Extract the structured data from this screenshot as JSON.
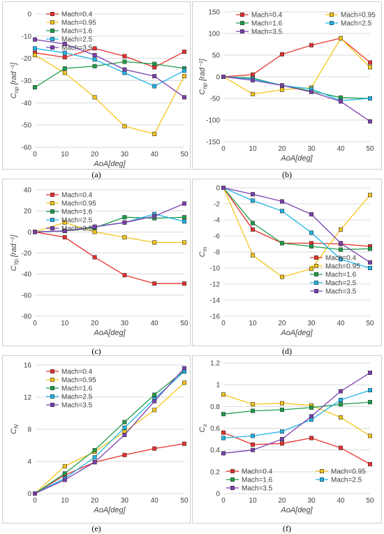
{
  "figure": {
    "captions": [
      "(a)",
      "(b)",
      "(c)",
      "(d)",
      "(e)",
      "(f)"
    ]
  },
  "chart_data": [
    {
      "type": "line",
      "caption": "(a)",
      "xlabel": "AoA[deg]",
      "ylabel": "C_np [rad⁻¹]",
      "ylabel_main": "C",
      "ylabel_sub": "np",
      "ylabel_unit": " [rad⁻¹]",
      "x": [
        0,
        10,
        20,
        30,
        40,
        50
      ],
      "xlim": [
        0,
        50
      ],
      "ylim": [
        -60,
        0
      ],
      "y_inverted": true,
      "yticks": [
        0,
        -10,
        -20,
        -30,
        -40,
        -50,
        -60
      ],
      "yticklabels": [
        "0",
        "-10",
        "-20",
        "-30",
        "-40",
        "-50",
        "-60"
      ],
      "grid": true,
      "legend_position": "top-left",
      "series": [
        {
          "name": "Mach=0.4",
          "color": "#e8302c",
          "values": [
            -17.5,
            -19.5,
            -15.5,
            -19,
            -24,
            -17
          ]
        },
        {
          "name": "Mach=0.95",
          "color": "#f5c518",
          "values": [
            -18.5,
            -26.5,
            -37.5,
            -50.5,
            -54,
            -28
          ]
        },
        {
          "name": "Mach=1.6",
          "color": "#1f9e4a",
          "values": [
            -33,
            -24.5,
            -23.5,
            -21.5,
            -22.5,
            -24.5
          ]
        },
        {
          "name": "Mach=2.5",
          "color": "#1fb5e6",
          "values": [
            -15.5,
            -17.5,
            -20.5,
            -26.5,
            -32.5,
            -25.5
          ]
        },
        {
          "name": "Mach=3.5",
          "color": "#7b3fb0",
          "values": [
            -11.5,
            -13.5,
            -18.5,
            -25,
            -28,
            -37.5
          ]
        }
      ]
    },
    {
      "type": "line",
      "caption": "(b)",
      "xlabel": "AoA[deg]",
      "ylabel": "C_np [rad⁻¹]",
      "ylabel_main": "C",
      "ylabel_sub": "np",
      "ylabel_unit": " [rad⁻¹]",
      "x": [
        0,
        10,
        20,
        30,
        40,
        50
      ],
      "xlim": [
        0,
        50
      ],
      "ylim": [
        -150,
        150
      ],
      "y_inverted": true,
      "yticks": [
        -150,
        -100,
        -50,
        0,
        50,
        100,
        150
      ],
      "yticklabels": [
        "-150",
        "-100",
        "-50",
        "0",
        "50",
        "100",
        "150"
      ],
      "grid": true,
      "legend_position": "top",
      "series": [
        {
          "name": "Mach=0.4",
          "color": "#e8302c",
          "values": [
            0,
            5,
            52,
            73,
            89,
            33
          ]
        },
        {
          "name": "Mach=0.95",
          "color": "#f5c518",
          "values": [
            0,
            -40,
            -30,
            -25,
            89,
            22
          ]
        },
        {
          "name": "Mach=1.6",
          "color": "#1f9e4a",
          "values": [
            0,
            -3,
            -20,
            -33,
            -48,
            -50
          ]
        },
        {
          "name": "Mach=2.5",
          "color": "#1fb5e6",
          "values": [
            0,
            -5,
            -20,
            -28,
            -55,
            -50
          ]
        },
        {
          "name": "Mach=3.5",
          "color": "#7b3fb0",
          "values": [
            0,
            -8,
            -20,
            -35,
            -57,
            -103
          ]
        }
      ]
    },
    {
      "type": "line",
      "caption": "(c)",
      "xlabel": "AoA[deg]",
      "ylabel": "C_Yp [rad⁻¹]",
      "ylabel_main": "C",
      "ylabel_sub": "Yp",
      "ylabel_unit": " [rad⁻¹]",
      "x": [
        0,
        10,
        20,
        30,
        40,
        50
      ],
      "xlim": [
        0,
        50
      ],
      "ylim": [
        -80,
        40
      ],
      "y_inverted": true,
      "yticks": [
        -80,
        -60,
        -40,
        -20,
        0,
        20,
        40
      ],
      "yticklabels": [
        "-80",
        "-60",
        "-40",
        "-20",
        "0",
        "20",
        "40"
      ],
      "grid": true,
      "legend_position": "top-left",
      "series": [
        {
          "name": "Mach=0.4",
          "color": "#e8302c",
          "values": [
            0,
            -5,
            -24,
            -41,
            -49,
            -49
          ]
        },
        {
          "name": "Mach=0.95",
          "color": "#f5c518",
          "values": [
            0,
            9,
            0,
            -5,
            -10,
            -10
          ]
        },
        {
          "name": "Mach=1.6",
          "color": "#1f9e4a",
          "values": [
            0,
            1,
            4,
            14,
            13,
            14
          ]
        },
        {
          "name": "Mach=2.5",
          "color": "#1fb5e6",
          "values": [
            0,
            1,
            5,
            9,
            17,
            10
          ]
        },
        {
          "name": "Mach=3.5",
          "color": "#7b3fb0",
          "values": [
            0,
            1,
            5,
            9,
            15,
            27
          ]
        }
      ]
    },
    {
      "type": "line",
      "caption": "(d)",
      "xlabel": "AoA[deg]",
      "ylabel": "C_m",
      "ylabel_main": "C",
      "ylabel_sub": "m",
      "ylabel_unit": "",
      "x": [
        0,
        10,
        20,
        30,
        40,
        50
      ],
      "xlim": [
        0,
        50
      ],
      "ylim": [
        -16,
        0
      ],
      "y_inverted": false,
      "yticks": [
        0,
        -2,
        -4,
        -6,
        -8,
        -10,
        -12,
        -14,
        -16
      ],
      "yticklabels": [
        "0",
        "-2",
        "-4",
        "-6",
        "-8",
        "-10",
        "-12",
        "-14",
        "-16"
      ],
      "grid": true,
      "legend_position": "bottom-right",
      "series": [
        {
          "name": "Mach=0.4",
          "color": "#e8302c",
          "values": [
            0,
            -5.2,
            -6.9,
            -6.9,
            -7.0,
            -7.3
          ]
        },
        {
          "name": "Mach=0.95",
          "color": "#f5c518",
          "values": [
            0,
            -8.4,
            -11.1,
            -10.1,
            -5.2,
            -0.9
          ]
        },
        {
          "name": "Mach=1.6",
          "color": "#1f9e4a",
          "values": [
            0,
            -4.4,
            -6.9,
            -7.3,
            -7.7,
            -7.6
          ]
        },
        {
          "name": "Mach=2.5",
          "color": "#1fb5e6",
          "values": [
            0,
            -1.6,
            -2.9,
            -5.6,
            -8.9,
            -10.0
          ]
        },
        {
          "name": "Mach=3.5",
          "color": "#7b3fb0",
          "values": [
            0,
            -0.8,
            -1.7,
            -3.3,
            -6.9,
            -9.3
          ]
        }
      ]
    },
    {
      "type": "line",
      "caption": "(e)",
      "xlabel": "AoA[deg]",
      "ylabel": "C_N",
      "ylabel_main": "C",
      "ylabel_sub": "N",
      "ylabel_unit": "",
      "x": [
        0,
        10,
        20,
        30,
        40,
        50
      ],
      "xlim": [
        0,
        50
      ],
      "ylim": [
        0,
        16
      ],
      "y_inverted": false,
      "yticks": [
        0,
        4,
        8,
        12,
        16
      ],
      "yticklabels": [
        "0",
        "4",
        "8",
        "12",
        "16"
      ],
      "grid": true,
      "legend_position": "top-left",
      "series": [
        {
          "name": "Mach=0.4",
          "color": "#e8302c",
          "values": [
            0,
            2.3,
            3.9,
            4.8,
            5.6,
            6.2
          ]
        },
        {
          "name": "Mach=0.95",
          "color": "#f5c518",
          "values": [
            0,
            3.4,
            5.2,
            7.7,
            10.4,
            13.8
          ]
        },
        {
          "name": "Mach=1.6",
          "color": "#1f9e4a",
          "values": [
            0,
            2.5,
            5.4,
            8.9,
            12.3,
            15.3
          ]
        },
        {
          "name": "Mach=2.5",
          "color": "#1fb5e6",
          "values": [
            0,
            1.9,
            4.5,
            8.2,
            11.8,
            15.2
          ]
        },
        {
          "name": "Mach=3.5",
          "color": "#7b3fb0",
          "values": [
            0,
            1.7,
            3.9,
            7.3,
            11.5,
            15.6
          ]
        }
      ]
    },
    {
      "type": "line",
      "caption": "(f)",
      "xlabel": "AoA[deg]",
      "ylabel": "C_x",
      "ylabel_main": "C",
      "ylabel_sub": "x",
      "ylabel_unit": "",
      "x": [
        0,
        10,
        20,
        30,
        40,
        50
      ],
      "xlim": [
        0,
        50
      ],
      "ylim": [
        0,
        1.2
      ],
      "y_inverted": false,
      "yticks": [
        0,
        0.2,
        0.4,
        0.6,
        0.8,
        1.0,
        1.2
      ],
      "yticklabels": [
        "0",
        "0.2",
        "0.4",
        "0.6",
        "0.8",
        "1",
        "1.2"
      ],
      "grid": true,
      "legend_position": "bottom",
      "series": [
        {
          "name": "Mach=0.4",
          "color": "#e8302c",
          "values": [
            0.56,
            0.45,
            0.46,
            0.51,
            0.42,
            0.27
          ]
        },
        {
          "name": "Mach=0.95",
          "color": "#f5c518",
          "values": [
            0.91,
            0.82,
            0.83,
            0.81,
            0.7,
            0.53
          ]
        },
        {
          "name": "Mach=1.6",
          "color": "#1f9e4a",
          "values": [
            0.73,
            0.76,
            0.77,
            0.79,
            0.82,
            0.84
          ]
        },
        {
          "name": "Mach=2.5",
          "color": "#1fb5e6",
          "values": [
            0.51,
            0.53,
            0.57,
            0.68,
            0.86,
            0.95
          ]
        },
        {
          "name": "Mach=3.5",
          "color": "#7b3fb0",
          "values": [
            0.37,
            0.4,
            0.5,
            0.71,
            0.94,
            1.11
          ]
        }
      ]
    }
  ]
}
